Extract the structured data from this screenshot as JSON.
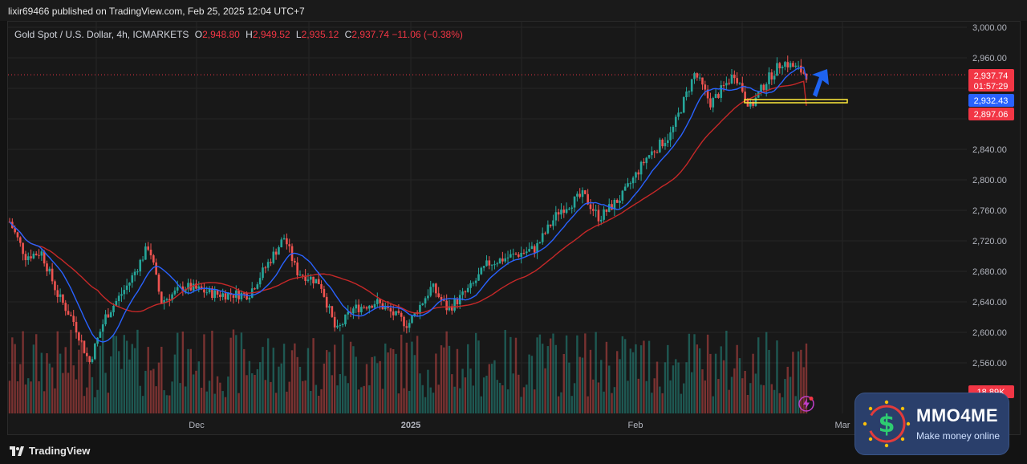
{
  "header": {
    "published": "lixir69466 published on TradingView.com, Feb 25, 2025 12:04 UTC+7"
  },
  "legend": {
    "symbol": "Gold Spot / U.S. Dollar, 4h, ICMARKETS",
    "o_label": "O",
    "o_value": "2,948.80",
    "h_label": "H",
    "h_value": "2,949.52",
    "l_label": "L",
    "l_value": "2,935.12",
    "c_label": "C",
    "c_value": "2,937.74",
    "change": "−11.06 (−0.38%)"
  },
  "price_badges": {
    "last": "2,937.74",
    "countdown": "01:57:29",
    "ma_fast": "2,932.43",
    "ma_slow": "2,897.06",
    "volume": "18.89K"
  },
  "footer": {
    "brand": "TradingView"
  },
  "watermark": {
    "title": "MMO4ME",
    "subtitle": "Make money online"
  },
  "colors": {
    "bull": "#26a69a",
    "bear": "#ef5350",
    "ma_fast": "#2962ff",
    "ma_slow": "#d32f2f",
    "last_price": "#f23645",
    "zone": "#ffeb3b",
    "arrow": "#1e63f0"
  },
  "icons": {
    "logo": "tradingview-logo-icon",
    "bolt": "lightning-bolt-icon",
    "watermark": "dollar-coin-icon"
  },
  "chart_data": {
    "type": "candlestick",
    "title": "Gold Spot / U.S. Dollar, 4h, ICMARKETS",
    "ylim": [
      2520,
      3000
    ],
    "y_ticks": [
      2560,
      2600,
      2640,
      2680,
      2720,
      2760,
      2800,
      2840,
      2960,
      3000
    ],
    "y_tick_labels": [
      "2,560.00",
      "2,600.00",
      "2,640.00",
      "2,680.00",
      "2,720.00",
      "2,760.00",
      "2,800.00",
      "2,840.00",
      "2,960.00",
      "3,000.00"
    ],
    "x_labels": [
      "Dec",
      "2025",
      "Feb",
      "Mar"
    ],
    "price_path": [
      {
        "x": 0.0,
        "y": 2745
      },
      {
        "x": 0.02,
        "y": 2700
      },
      {
        "x": 0.04,
        "y": 2705
      },
      {
        "x": 0.06,
        "y": 2650
      },
      {
        "x": 0.08,
        "y": 2615
      },
      {
        "x": 0.1,
        "y": 2560
      },
      {
        "x": 0.12,
        "y": 2620
      },
      {
        "x": 0.15,
        "y": 2665
      },
      {
        "x": 0.175,
        "y": 2715
      },
      {
        "x": 0.19,
        "y": 2640
      },
      {
        "x": 0.22,
        "y": 2660
      },
      {
        "x": 0.26,
        "y": 2650
      },
      {
        "x": 0.3,
        "y": 2650
      },
      {
        "x": 0.33,
        "y": 2700
      },
      {
        "x": 0.345,
        "y": 2725
      },
      {
        "x": 0.36,
        "y": 2680
      },
      {
        "x": 0.39,
        "y": 2665
      },
      {
        "x": 0.41,
        "y": 2600
      },
      {
        "x": 0.43,
        "y": 2630
      },
      {
        "x": 0.46,
        "y": 2640
      },
      {
        "x": 0.5,
        "y": 2610
      },
      {
        "x": 0.53,
        "y": 2660
      },
      {
        "x": 0.55,
        "y": 2630
      },
      {
        "x": 0.58,
        "y": 2660
      },
      {
        "x": 0.6,
        "y": 2690
      },
      {
        "x": 0.63,
        "y": 2700
      },
      {
        "x": 0.66,
        "y": 2710
      },
      {
        "x": 0.69,
        "y": 2760
      },
      {
        "x": 0.72,
        "y": 2780
      },
      {
        "x": 0.74,
        "y": 2750
      },
      {
        "x": 0.77,
        "y": 2780
      },
      {
        "x": 0.8,
        "y": 2830
      },
      {
        "x": 0.83,
        "y": 2860
      },
      {
        "x": 0.86,
        "y": 2940
      },
      {
        "x": 0.88,
        "y": 2900
      },
      {
        "x": 0.91,
        "y": 2940
      },
      {
        "x": 0.93,
        "y": 2895
      },
      {
        "x": 0.95,
        "y": 2930
      },
      {
        "x": 0.97,
        "y": 2955
      },
      {
        "x": 0.99,
        "y": 2945
      },
      {
        "x": 1.0,
        "y": 2938
      }
    ],
    "series": [
      {
        "name": "MA fast",
        "last": 2932.43
      },
      {
        "name": "MA slow",
        "last": 2897.06
      }
    ],
    "annotations": [
      "support zone near 2,910",
      "upward arrow"
    ],
    "grid": true,
    "legend_position": "top-left"
  }
}
